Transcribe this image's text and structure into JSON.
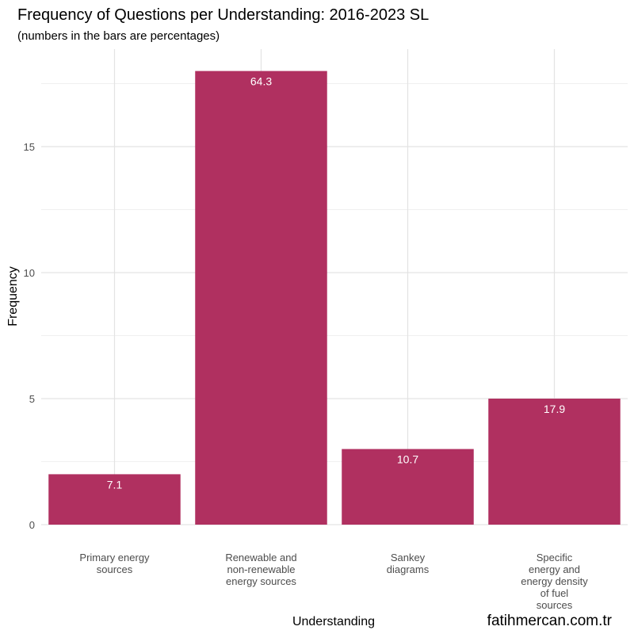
{
  "chart_data": {
    "type": "bar",
    "title": "Frequency of Questions per Understanding: 2016-2023 SL",
    "subtitle": "(numbers in the bars are percentages)",
    "xlabel": "Understanding",
    "ylabel": "Frequency",
    "categories": [
      [
        "Primary energy",
        "sources"
      ],
      [
        "Renewable and",
        "non-renewable",
        "energy sources"
      ],
      [
        "Sankey",
        "diagrams"
      ],
      [
        "Specific",
        "energy and",
        "energy density",
        "of fuel",
        "sources"
      ]
    ],
    "values": [
      2,
      18,
      3,
      5
    ],
    "bar_labels": [
      "7.1",
      "64.3",
      "10.7",
      "17.9"
    ],
    "y_ticks": [
      0,
      5,
      10,
      15
    ],
    "ylim": [
      0,
      18.9
    ],
    "bar_color": "#b03060",
    "grid": true
  },
  "credit": "fatihmercan.com.tr"
}
